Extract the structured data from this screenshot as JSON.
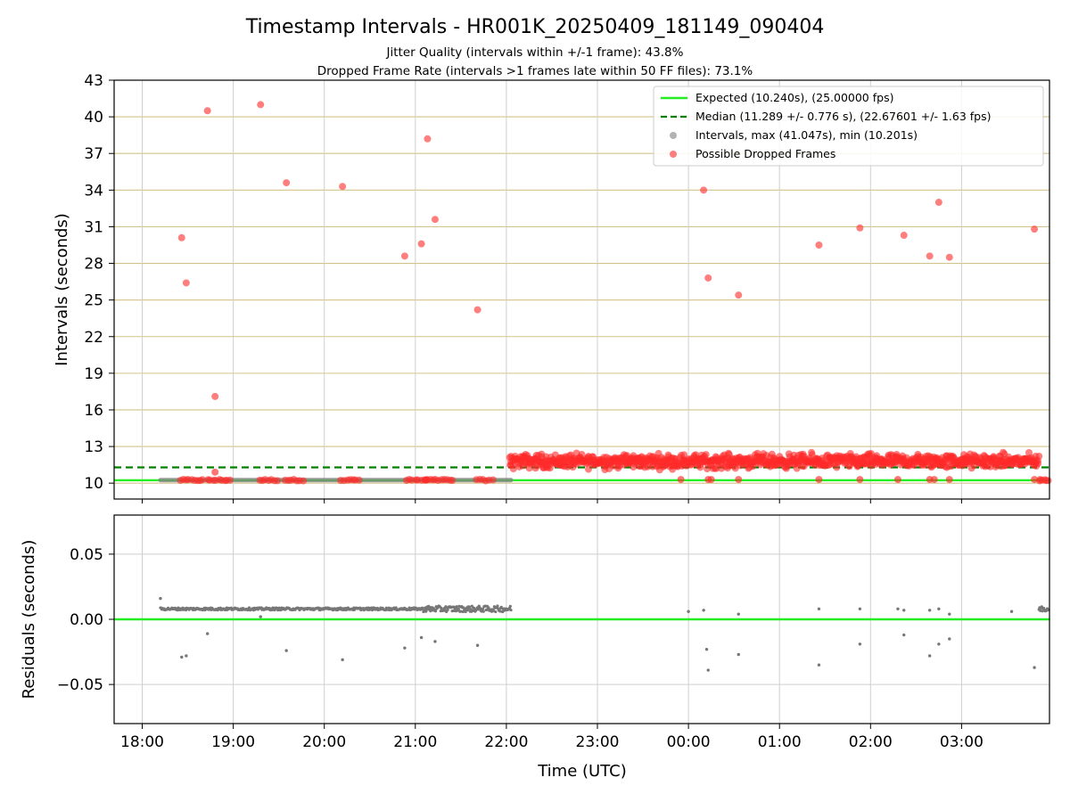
{
  "chart_data": [
    {
      "type": "scatter",
      "title": "Timestamp Intervals - HR001K_20250409_181149_090404",
      "subtitle_lines": [
        "Jitter Quality (intervals within +/-1 frame): 43.8%",
        "Dropped Frame Rate (intervals >1 frames late within 50 FF files): 73.1%"
      ],
      "ylabel": "Intervals (seconds)",
      "ylim": [
        8.7,
        43
      ],
      "y_ticks": [
        "10",
        "13",
        "16",
        "19",
        "22",
        "25",
        "28",
        "31",
        "34",
        "37",
        "40",
        "43"
      ],
      "grid": true,
      "legend_position": "top-right",
      "expected_interval": 10.24,
      "median_interval": 11.289,
      "legend": [
        "Expected (10.240s), (25.00000 fps)",
        "Median (11.289 +/- 0.776 s), (22.67601 +/- 1.63 fps)",
        "Intervals, max (41.047s), min (10.201s)",
        "Possible Dropped Frames"
      ],
      "series": [
        {
          "name": "Intervals, max (41.047s), min (10.201s)",
          "segments": [
            {
              "x_start": "18:12",
              "x_end": "22:03",
              "value": 10.25
            },
            {
              "x_start": "22:03",
              "x_end": "03:57",
              "value": 11.7
            }
          ]
        },
        {
          "name": "Possible Dropped Frames",
          "points": [
            [
              "18:26",
              30.1
            ],
            [
              "18:29",
              26.4
            ],
            [
              "18:43",
              40.5
            ],
            [
              "18:48",
              17.1
            ],
            [
              "19:18",
              41.0
            ],
            [
              "19:35",
              34.6
            ],
            [
              "20:12",
              34.3
            ],
            [
              "20:53",
              28.6
            ],
            [
              "21:04",
              29.6
            ],
            [
              "21:08",
              38.2
            ],
            [
              "21:13",
              31.6
            ],
            [
              "21:41",
              24.2
            ],
            [
              "00:10",
              34.0
            ],
            [
              "00:13",
              26.8
            ],
            [
              "00:33",
              25.4
            ],
            [
              "01:26",
              29.5
            ],
            [
              "01:53",
              30.9
            ],
            [
              "02:22",
              30.3
            ],
            [
              "02:39",
              28.6
            ],
            [
              "02:45",
              33.0
            ],
            [
              "02:52",
              28.5
            ],
            [
              "03:48",
              30.8
            ]
          ],
          "clusters": [
            {
              "x_start": "18:25",
              "x_end": "18:40",
              "value": 10.25
            },
            {
              "x_start": "18:43",
              "x_end": "18:58",
              "value": 10.25
            },
            {
              "x_start": "19:17",
              "x_end": "19:29",
              "value": 10.25
            },
            {
              "x_start": "19:34",
              "x_end": "19:46",
              "value": 10.25
            },
            {
              "x_start": "20:11",
              "x_end": "20:23",
              "value": 10.25
            },
            {
              "x_start": "20:54",
              "x_end": "21:08",
              "value": 10.25
            },
            {
              "x_start": "21:06",
              "x_end": "21:25",
              "value": 10.25
            },
            {
              "x_start": "21:40",
              "x_end": "21:51",
              "value": 10.25
            },
            {
              "x_start": "22:02",
              "x_end": "03:51",
              "value": 11.8
            },
            {
              "x_start": "03:51",
              "x_end": "03:57",
              "value": 10.25
            }
          ]
        }
      ]
    },
    {
      "type": "scatter",
      "ylabel": "Residuals (seconds)",
      "xlabel": "Time (UTC)",
      "ylim": [
        -0.08,
        0.08
      ],
      "y_ticks": [
        "−0.05",
        "0.00",
        "0.05"
      ],
      "x_ticks": [
        "18:00",
        "19:00",
        "20:00",
        "21:00",
        "22:00",
        "23:00",
        "00:00",
        "01:00",
        "02:00",
        "03:00"
      ],
      "grid": true,
      "residual_band": {
        "x_start": "18:12",
        "x_end": "22:03",
        "value": 0.008
      },
      "residual_band_end": {
        "x_start": "03:51",
        "x_end": "03:57",
        "value": 0.008
      },
      "points": [
        [
          "18:12",
          0.016
        ],
        [
          "18:26",
          -0.029
        ],
        [
          "18:29",
          -0.028
        ],
        [
          "18:43",
          -0.011
        ],
        [
          "19:18",
          0.002
        ],
        [
          "19:35",
          -0.024
        ],
        [
          "20:12",
          -0.031
        ],
        [
          "20:53",
          -0.022
        ],
        [
          "21:04",
          -0.014
        ],
        [
          "21:13",
          -0.017
        ],
        [
          "21:41",
          -0.02
        ],
        [
          "00:00",
          0.006
        ],
        [
          "00:10",
          0.007
        ],
        [
          "00:13",
          -0.039
        ],
        [
          "00:12",
          -0.023
        ],
        [
          "00:33",
          -0.027
        ],
        [
          "00:33",
          0.004
        ],
        [
          "01:26",
          0.008
        ],
        [
          "01:26",
          -0.035
        ],
        [
          "01:53",
          0.008
        ],
        [
          "01:53",
          -0.019
        ],
        [
          "02:18",
          0.008
        ],
        [
          "02:22",
          0.007
        ],
        [
          "02:22",
          -0.012
        ],
        [
          "02:39",
          0.007
        ],
        [
          "02:39",
          -0.028
        ],
        [
          "02:45",
          0.008
        ],
        [
          "02:45",
          -0.019
        ],
        [
          "02:52",
          0.004
        ],
        [
          "02:52",
          -0.015
        ],
        [
          "03:33",
          0.006
        ],
        [
          "03:48",
          -0.037
        ]
      ]
    }
  ]
}
